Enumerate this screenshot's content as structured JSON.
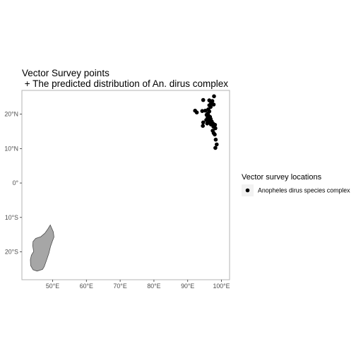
{
  "chart_data": {
    "type": "scatter",
    "title": "Vector Survey points",
    "subtitle": " + The predicted distribution of An. dirus complex",
    "xlabel": "",
    "ylabel": "",
    "x_ticks": [
      "50°E",
      "60°E",
      "70°E",
      "80°E",
      "90°E",
      "100°E"
    ],
    "x_tick_values": [
      50,
      60,
      70,
      80,
      90,
      100
    ],
    "y_ticks": [
      "20°N",
      "10°N",
      "0°",
      "10°S",
      "20°S"
    ],
    "y_tick_values": [
      20,
      10,
      0,
      -10,
      -20
    ],
    "xlim": [
      40.9,
      102.4
    ],
    "ylim": [
      -28.1,
      26.9
    ],
    "grid": false,
    "legend": {
      "title": "Vector survey locations",
      "entries": [
        "Anopheles dirus species complex"
      ],
      "placement": "right"
    },
    "map_polygon": {
      "name": "Madagascar",
      "fill": "#a6a6a6",
      "stroke": "#4d4d4d",
      "lonlat": [
        [
          49.3,
          -12.2
        ],
        [
          50.2,
          -14.2
        ],
        [
          50.4,
          -15.7
        ],
        [
          49.9,
          -17.0
        ],
        [
          49.4,
          -18.4
        ],
        [
          48.9,
          -20.4
        ],
        [
          48.2,
          -22.4
        ],
        [
          47.5,
          -24.3
        ],
        [
          47.0,
          -25.1
        ],
        [
          45.4,
          -25.6
        ],
        [
          44.2,
          -25.2
        ],
        [
          43.5,
          -24.0
        ],
        [
          43.4,
          -22.3
        ],
        [
          43.7,
          -21.0
        ],
        [
          44.4,
          -19.9
        ],
        [
          44.1,
          -18.2
        ],
        [
          44.2,
          -17.0
        ],
        [
          45.0,
          -16.1
        ],
        [
          46.5,
          -15.6
        ],
        [
          47.7,
          -14.6
        ],
        [
          48.5,
          -13.5
        ],
        [
          49.3,
          -12.2
        ]
      ]
    },
    "series": [
      {
        "name": "Anopheles dirus species complex",
        "color": "#000000",
        "points": [
          [
            97.8,
            25.2
          ],
          [
            94.6,
            24.1
          ],
          [
            96.4,
            24.0
          ],
          [
            97.3,
            23.8
          ],
          [
            96.9,
            23.1
          ],
          [
            96.4,
            22.6
          ],
          [
            97.7,
            22.8
          ],
          [
            96.8,
            22.1
          ],
          [
            96.1,
            21.4
          ],
          [
            92.2,
            21.0
          ],
          [
            94.3,
            20.9
          ],
          [
            95.2,
            21.0
          ],
          [
            96.4,
            20.8
          ],
          [
            92.7,
            20.5
          ],
          [
            96.0,
            20.2
          ],
          [
            95.6,
            19.8
          ],
          [
            96.2,
            19.5
          ],
          [
            96.6,
            19.2
          ],
          [
            95.9,
            18.9
          ],
          [
            96.8,
            18.6
          ],
          [
            95.5,
            18.3
          ],
          [
            96.3,
            18.0
          ],
          [
            97.1,
            17.9
          ],
          [
            96.6,
            17.6
          ],
          [
            95.8,
            17.3
          ],
          [
            94.6,
            17.6
          ],
          [
            97.5,
            17.3
          ],
          [
            96.9,
            17.0
          ],
          [
            98.1,
            16.9
          ],
          [
            94.5,
            16.6
          ],
          [
            97.6,
            16.4
          ],
          [
            98.2,
            15.9
          ],
          [
            97.4,
            15.2
          ],
          [
            97.7,
            14.5
          ],
          [
            98.0,
            14.1
          ],
          [
            98.3,
            12.6
          ],
          [
            98.6,
            11.2
          ],
          [
            98.2,
            10.2
          ]
        ]
      }
    ]
  }
}
